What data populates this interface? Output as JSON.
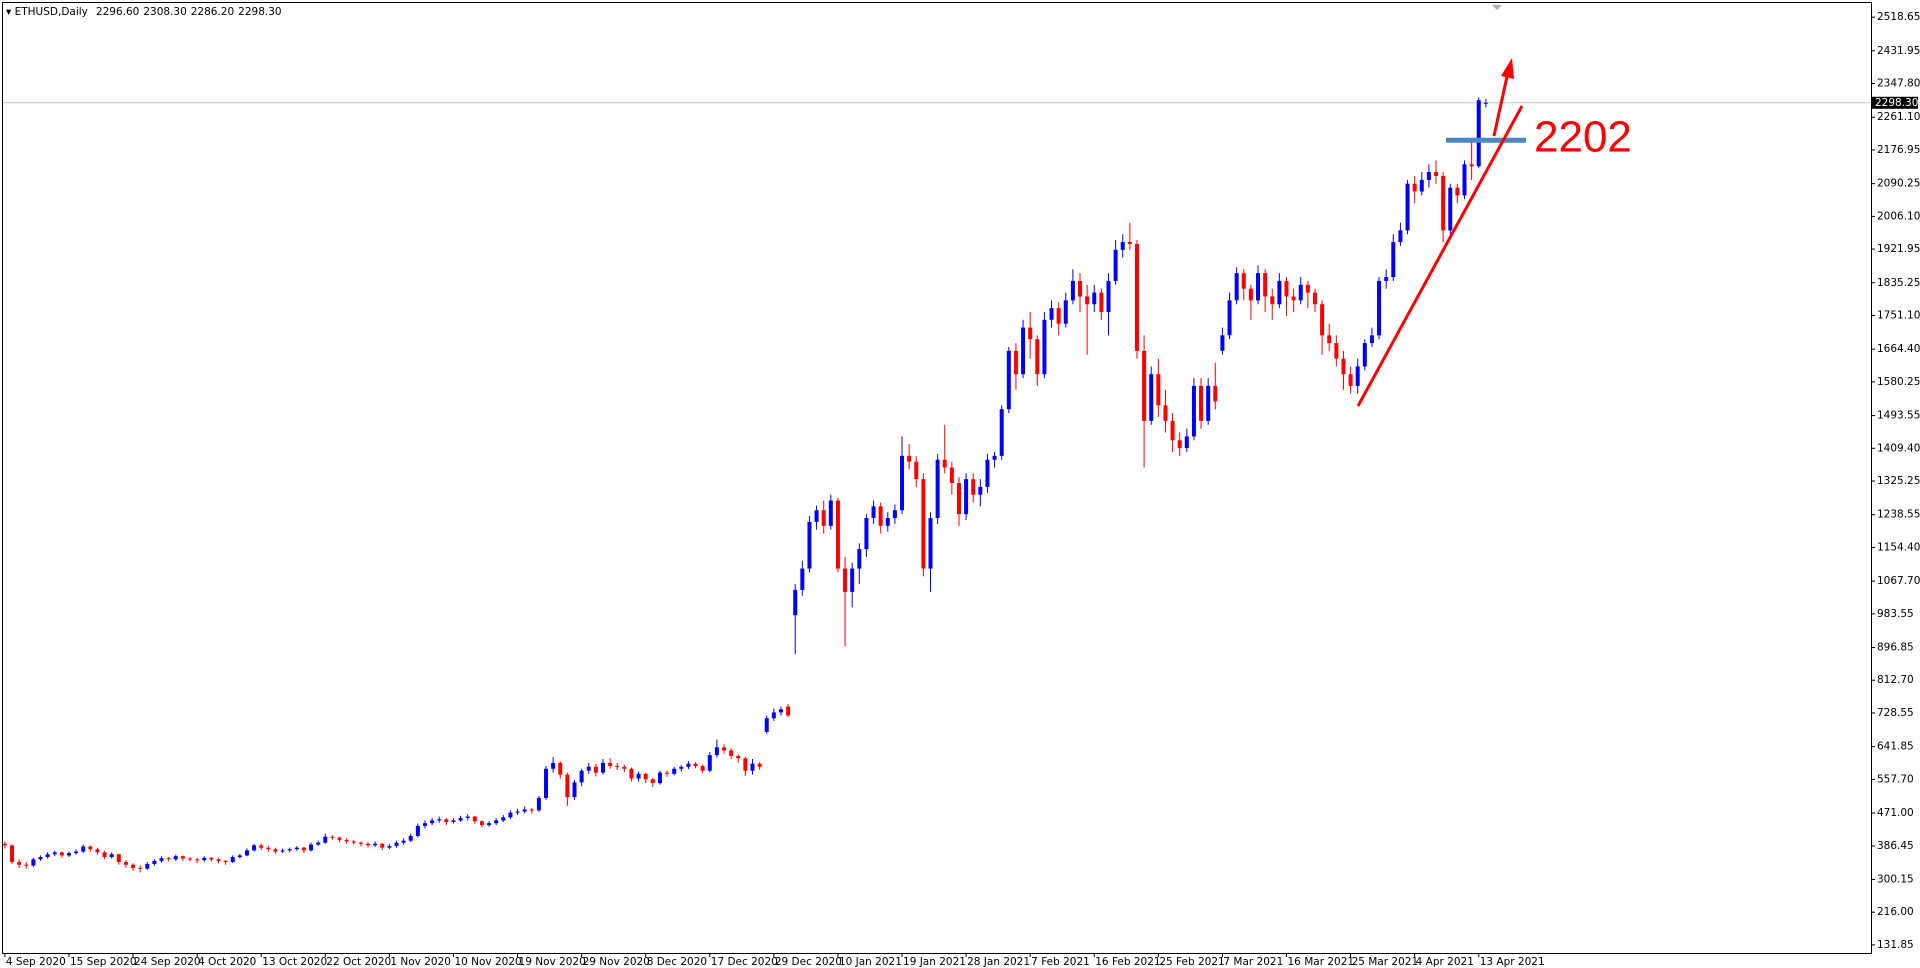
{
  "header": {
    "title": "ETHUSD,Daily",
    "ohlc_labels": [
      "2296.60",
      "2308.30",
      "2286.20",
      "2298.30"
    ]
  },
  "chart_data": {
    "type": "candlestick",
    "up_color": "#0000ff",
    "down_color": "#ff0000",
    "annotation": {
      "label": "2202",
      "value": 2202,
      "color": "#4a86c5"
    },
    "ylim": [
      111,
      2555
    ],
    "yticks": [
      131.85,
      {
        "value": 216.0,
        "label": "216.00"
      },
      300.15,
      386.45,
      {
        "value": 471.0,
        "label": "471.00"
      },
      {
        "value": 557.7,
        "label": "557.70"
      },
      641.85,
      728.55,
      {
        "value": 812.7,
        "label": "812.70"
      },
      896.85,
      983.55,
      {
        "value": 1067.7,
        "label": "1067.70"
      },
      {
        "value": 1154.4,
        "label": "1154.40"
      },
      1238.55,
      1325.25,
      {
        "value": 1409.4,
        "label": "1409.40"
      },
      1493.55,
      1580.25,
      {
        "value": 1664.4,
        "label": "1664.40"
      },
      {
        "value": 1751.1,
        "label": "1751.10"
      },
      1835.25,
      1921.95,
      {
        "value": 2006.1,
        "label": "2006.10"
      },
      2090.25,
      2176.95,
      {
        "value": 2261.1,
        "label": "2261.10"
      },
      {
        "value": 2347.8,
        "label": "2347.80"
      },
      2431.95,
      2518.65
    ],
    "categories": [
      "4 Sep 2020",
      null,
      null,
      null,
      null,
      null,
      null,
      null,
      null,
      "15 Sep 2020",
      null,
      null,
      null,
      null,
      null,
      null,
      null,
      null,
      "24 Sep 2020",
      null,
      null,
      null,
      null,
      null,
      null,
      null,
      null,
      "4 Oct 2020",
      null,
      null,
      null,
      null,
      null,
      null,
      null,
      null,
      "13 Oct 2020",
      null,
      null,
      null,
      null,
      null,
      null,
      null,
      null,
      "22 Oct 2020",
      null,
      null,
      null,
      null,
      null,
      null,
      null,
      null,
      "1 Nov 2020",
      null,
      null,
      null,
      null,
      null,
      null,
      null,
      null,
      "10 Nov 2020",
      null,
      null,
      null,
      null,
      null,
      null,
      null,
      null,
      "19 Nov 2020",
      null,
      null,
      null,
      null,
      null,
      null,
      null,
      null,
      "29 Nov 2020",
      null,
      null,
      null,
      null,
      null,
      null,
      null,
      null,
      "8 Dec 2020",
      null,
      null,
      null,
      null,
      null,
      null,
      null,
      null,
      "17 Dec 2020",
      null,
      null,
      null,
      null,
      null,
      null,
      null,
      null,
      "29 Dec 2020",
      null,
      null,
      null,
      null,
      null,
      null,
      null,
      null,
      "10 Jan 2021",
      null,
      null,
      null,
      null,
      null,
      null,
      null,
      null,
      "19 Jan 2021",
      null,
      null,
      null,
      null,
      null,
      null,
      null,
      null,
      "28 Jan 2021",
      null,
      null,
      null,
      null,
      null,
      null,
      null,
      null,
      "7 Feb 2021",
      null,
      null,
      null,
      null,
      null,
      null,
      null,
      null,
      "16 Feb 2021",
      null,
      null,
      null,
      null,
      null,
      null,
      null,
      null,
      "25 Feb 2021",
      null,
      null,
      null,
      null,
      null,
      null,
      null,
      null,
      "7 Mar 2021",
      null,
      null,
      null,
      null,
      null,
      null,
      null,
      null,
      "16 Mar 2021",
      null,
      null,
      null,
      null,
      null,
      null,
      null,
      null,
      "25 Mar 2021",
      null,
      null,
      null,
      null,
      null,
      null,
      null,
      null,
      "4 Apr 2021",
      null,
      null,
      null,
      null,
      null,
      null,
      null,
      null,
      "13 Apr 2021",
      null
    ],
    "ohlc": [
      [
        392,
        398,
        380,
        388
      ],
      [
        388,
        390,
        340,
        345
      ],
      [
        345,
        352,
        330,
        338
      ],
      [
        338,
        345,
        328,
        336
      ],
      [
        336,
        356,
        332,
        352
      ],
      [
        352,
        362,
        348,
        358
      ],
      [
        358,
        370,
        354,
        365
      ],
      [
        365,
        374,
        360,
        370
      ],
      [
        370,
        372,
        356,
        362
      ],
      [
        362,
        372,
        358,
        368
      ],
      [
        368,
        378,
        364,
        372
      ],
      [
        372,
        390,
        368,
        385
      ],
      [
        385,
        388,
        372,
        378
      ],
      [
        378,
        382,
        364,
        370
      ],
      [
        370,
        374,
        352,
        358
      ],
      [
        358,
        370,
        354,
        365
      ],
      [
        365,
        366,
        338,
        345
      ],
      [
        345,
        350,
        330,
        338
      ],
      [
        338,
        342,
        322,
        330
      ],
      [
        330,
        336,
        318,
        328
      ],
      [
        328,
        345,
        325,
        340
      ],
      [
        340,
        352,
        336,
        348
      ],
      [
        348,
        360,
        344,
        355
      ],
      [
        355,
        358,
        346,
        352
      ],
      [
        352,
        364,
        348,
        360
      ],
      [
        360,
        362,
        348,
        354
      ],
      [
        354,
        358,
        346,
        352
      ],
      [
        352,
        356,
        342,
        350
      ],
      [
        350,
        360,
        346,
        356
      ],
      [
        356,
        358,
        346,
        352
      ],
      [
        352,
        355,
        342,
        348
      ],
      [
        348,
        350,
        338,
        345
      ],
      [
        345,
        362,
        342,
        358
      ],
      [
        358,
        366,
        354,
        362
      ],
      [
        362,
        380,
        360,
        375
      ],
      [
        375,
        392,
        372,
        388
      ],
      [
        388,
        392,
        376,
        382
      ],
      [
        382,
        386,
        372,
        378
      ],
      [
        378,
        382,
        366,
        372
      ],
      [
        372,
        380,
        368,
        375
      ],
      [
        375,
        382,
        370,
        378
      ],
      [
        378,
        386,
        374,
        382
      ],
      [
        382,
        384,
        368,
        375
      ],
      [
        375,
        395,
        372,
        390
      ],
      [
        390,
        400,
        386,
        395
      ],
      [
        395,
        418,
        392,
        410
      ],
      [
        410,
        414,
        402,
        408
      ],
      [
        408,
        410,
        396,
        402
      ],
      [
        402,
        406,
        392,
        398
      ],
      [
        398,
        402,
        390,
        395
      ],
      [
        395,
        398,
        386,
        392
      ],
      [
        392,
        396,
        382,
        388
      ],
      [
        388,
        398,
        384,
        392
      ],
      [
        392,
        394,
        376,
        382
      ],
      [
        382,
        392,
        378,
        386
      ],
      [
        386,
        400,
        382,
        395
      ],
      [
        395,
        406,
        390,
        400
      ],
      [
        400,
        418,
        396,
        412
      ],
      [
        412,
        444,
        408,
        438
      ],
      [
        438,
        452,
        432,
        445
      ],
      [
        445,
        458,
        440,
        452
      ],
      [
        452,
        462,
        446,
        455
      ],
      [
        455,
        458,
        440,
        448
      ],
      [
        448,
        458,
        444,
        452
      ],
      [
        452,
        464,
        448,
        458
      ],
      [
        458,
        468,
        452,
        462
      ],
      [
        462,
        464,
        444,
        450
      ],
      [
        450,
        452,
        434,
        440
      ],
      [
        440,
        450,
        436,
        445
      ],
      [
        445,
        458,
        440,
        452
      ],
      [
        452,
        466,
        448,
        460
      ],
      [
        460,
        478,
        456,
        472
      ],
      [
        472,
        482,
        466,
        475
      ],
      [
        475,
        488,
        470,
        480
      ],
      [
        480,
        484,
        470,
        478
      ],
      [
        478,
        515,
        474,
        510
      ],
      [
        510,
        592,
        505,
        585
      ],
      [
        585,
        615,
        575,
        600
      ],
      [
        600,
        605,
        560,
        570
      ],
      [
        570,
        575,
        490,
        512
      ],
      [
        512,
        556,
        505,
        550
      ],
      [
        550,
        585,
        540,
        580
      ],
      [
        580,
        600,
        572,
        590
      ],
      [
        590,
        598,
        565,
        575
      ],
      [
        575,
        610,
        570,
        600
      ],
      [
        600,
        612,
        585,
        592
      ],
      [
        592,
        600,
        582,
        590
      ],
      [
        590,
        596,
        576,
        585
      ],
      [
        585,
        588,
        552,
        560
      ],
      [
        560,
        578,
        552,
        572
      ],
      [
        572,
        575,
        548,
        558
      ],
      [
        558,
        562,
        538,
        548
      ],
      [
        548,
        580,
        544,
        575
      ],
      [
        575,
        580,
        564,
        572
      ],
      [
        572,
        590,
        568,
        585
      ],
      [
        585,
        594,
        578,
        590
      ],
      [
        590,
        605,
        584,
        598
      ],
      [
        598,
        602,
        586,
        592
      ],
      [
        592,
        596,
        574,
        580
      ],
      [
        580,
        628,
        576,
        620
      ],
      [
        620,
        660,
        614,
        640
      ],
      [
        640,
        648,
        624,
        632
      ],
      [
        632,
        638,
        610,
        618
      ],
      [
        618,
        622,
        600,
        612
      ],
      [
        612,
        616,
        566,
        580
      ],
      [
        580,
        610,
        570,
        598
      ],
      [
        598,
        602,
        582,
        590
      ],
      [
        680,
        722,
        675,
        715
      ],
      [
        715,
        740,
        708,
        730
      ],
      [
        730,
        745,
        722,
        738
      ],
      [
        745,
        752,
        718,
        722
      ],
      [
        980,
        1060,
        880,
        1045
      ],
      [
        1045,
        1120,
        1030,
        1100
      ],
      [
        1100,
        1235,
        1090,
        1220
      ],
      [
        1220,
        1262,
        1200,
        1250
      ],
      [
        1250,
        1275,
        1190,
        1210
      ],
      [
        1210,
        1290,
        1200,
        1275
      ],
      [
        1275,
        1282,
        1090,
        1100
      ],
      [
        1100,
        1130,
        900,
        1040
      ],
      [
        1040,
        1115,
        1000,
        1100
      ],
      [
        1100,
        1165,
        1060,
        1150
      ],
      [
        1150,
        1240,
        1130,
        1230
      ],
      [
        1230,
        1275,
        1215,
        1260
      ],
      [
        1260,
        1270,
        1190,
        1210
      ],
      [
        1210,
        1245,
        1195,
        1230
      ],
      [
        1230,
        1265,
        1215,
        1250
      ],
      [
        1250,
        1440,
        1240,
        1390
      ],
      [
        1390,
        1420,
        1355,
        1375
      ],
      [
        1375,
        1390,
        1310,
        1330
      ],
      [
        1330,
        1345,
        1080,
        1100
      ],
      [
        1100,
        1245,
        1040,
        1230
      ],
      [
        1230,
        1395,
        1215,
        1380
      ],
      [
        1380,
        1470,
        1345,
        1360
      ],
      [
        1360,
        1375,
        1290,
        1320
      ],
      [
        1320,
        1335,
        1210,
        1240
      ],
      [
        1240,
        1345,
        1225,
        1330
      ],
      [
        1330,
        1345,
        1270,
        1290
      ],
      [
        1290,
        1330,
        1260,
        1310
      ],
      [
        1310,
        1395,
        1295,
        1380
      ],
      [
        1380,
        1400,
        1360,
        1390
      ],
      [
        1390,
        1520,
        1380,
        1510
      ],
      [
        1510,
        1670,
        1500,
        1660
      ],
      [
        1660,
        1680,
        1560,
        1600
      ],
      [
        1600,
        1740,
        1590,
        1720
      ],
      [
        1720,
        1760,
        1640,
        1690
      ],
      [
        1690,
        1700,
        1570,
        1600
      ],
      [
        1600,
        1760,
        1590,
        1740
      ],
      [
        1740,
        1790,
        1720,
        1770
      ],
      [
        1770,
        1785,
        1700,
        1730
      ],
      [
        1730,
        1810,
        1720,
        1790
      ],
      [
        1790,
        1870,
        1780,
        1840
      ],
      [
        1840,
        1860,
        1760,
        1800
      ],
      [
        1800,
        1830,
        1650,
        1780
      ],
      [
        1780,
        1830,
        1760,
        1810
      ],
      [
        1810,
        1820,
        1740,
        1760
      ],
      [
        1760,
        1860,
        1700,
        1840
      ],
      [
        1840,
        1945,
        1830,
        1920
      ],
      [
        1920,
        1960,
        1900,
        1940
      ],
      [
        1940,
        1990,
        1920,
        1935
      ],
      [
        1935,
        1945,
        1640,
        1660
      ],
      [
        1660,
        1700,
        1360,
        1480
      ],
      [
        1480,
        1620,
        1470,
        1600
      ],
      [
        1600,
        1640,
        1490,
        1520
      ],
      [
        1520,
        1560,
        1450,
        1480
      ],
      [
        1480,
        1500,
        1400,
        1430
      ],
      [
        1430,
        1450,
        1390,
        1410
      ],
      [
        1410,
        1460,
        1400,
        1440
      ],
      [
        1440,
        1590,
        1430,
        1570
      ],
      [
        1570,
        1590,
        1460,
        1480
      ],
      [
        1480,
        1590,
        1470,
        1570
      ],
      [
        1570,
        1630,
        1510,
        1530
      ],
      [
        1660,
        1720,
        1650,
        1700
      ],
      [
        1700,
        1810,
        1690,
        1790
      ],
      [
        1790,
        1875,
        1780,
        1860
      ],
      [
        1860,
        1870,
        1790,
        1820
      ],
      [
        1820,
        1830,
        1740,
        1790
      ],
      [
        1790,
        1880,
        1780,
        1860
      ],
      [
        1860,
        1870,
        1760,
        1800
      ],
      [
        1800,
        1820,
        1740,
        1780
      ],
      [
        1780,
        1860,
        1770,
        1840
      ],
      [
        1840,
        1850,
        1750,
        1800
      ],
      [
        1800,
        1820,
        1760,
        1790
      ],
      [
        1790,
        1850,
        1780,
        1830
      ],
      [
        1830,
        1840,
        1770,
        1810
      ],
      [
        1810,
        1820,
        1760,
        1780
      ],
      [
        1780,
        1790,
        1650,
        1700
      ],
      [
        1700,
        1730,
        1660,
        1680
      ],
      [
        1680,
        1700,
        1620,
        1640
      ],
      [
        1640,
        1660,
        1560,
        1600
      ],
      [
        1600,
        1620,
        1550,
        1570
      ],
      [
        1570,
        1640,
        1550,
        1620
      ],
      [
        1620,
        1690,
        1610,
        1680
      ],
      [
        1680,
        1720,
        1670,
        1700
      ],
      [
        1700,
        1850,
        1690,
        1840
      ],
      [
        1840,
        1870,
        1820,
        1850
      ],
      [
        1850,
        1960,
        1840,
        1940
      ],
      [
        1940,
        1990,
        1930,
        1970
      ],
      [
        1970,
        2100,
        1960,
        2090
      ],
      [
        2090,
        2110,
        2040,
        2070
      ],
      [
        2070,
        2120,
        2060,
        2100
      ],
      [
        2100,
        2140,
        2080,
        2120
      ],
      [
        2120,
        2150,
        2090,
        2110
      ],
      [
        2110,
        2120,
        1940,
        1970
      ],
      [
        1970,
        2090,
        1960,
        2080
      ],
      [
        2080,
        2090,
        2040,
        2060
      ],
      [
        2060,
        2150,
        2050,
        2140
      ],
      [
        2140,
        2200,
        2100,
        2135
      ],
      [
        2135,
        2312,
        2130,
        2305
      ],
      [
        2296.6,
        2308.3,
        2286.2,
        2298.3
      ]
    ]
  }
}
